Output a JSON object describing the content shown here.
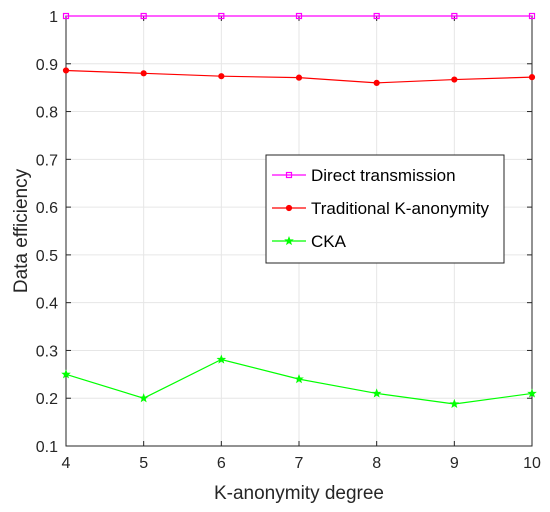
{
  "chart_data": {
    "type": "line",
    "title": "",
    "xlabel": "K-anonymity degree",
    "ylabel": "Data efficiency",
    "x": [
      4,
      5,
      6,
      7,
      8,
      9,
      10
    ],
    "xlim": [
      4,
      10
    ],
    "ylim": [
      0.1,
      1
    ],
    "xticks": [
      "4",
      "5",
      "6",
      "7",
      "8",
      "9",
      "10"
    ],
    "yticks": [
      "0.1",
      "0.2",
      "0.3",
      "0.4",
      "0.5",
      "0.6",
      "0.7",
      "0.8",
      "0.9",
      "1"
    ],
    "grid": true,
    "legend_position": "center-right",
    "series": [
      {
        "name": "Direct transmission",
        "color": "#ff00ff",
        "marker": "square",
        "values": [
          1,
          1,
          1,
          1,
          1,
          1,
          1
        ]
      },
      {
        "name": "Traditional K-anonymity",
        "color": "#ff0000",
        "marker": "circle",
        "values": [
          0.886,
          0.88,
          0.874,
          0.871,
          0.86,
          0.867,
          0.872
        ]
      },
      {
        "name": "CKA",
        "color": "#00ff00",
        "marker": "star",
        "values": [
          0.25,
          0.2,
          0.281,
          0.24,
          0.21,
          0.188,
          0.21
        ]
      }
    ]
  }
}
